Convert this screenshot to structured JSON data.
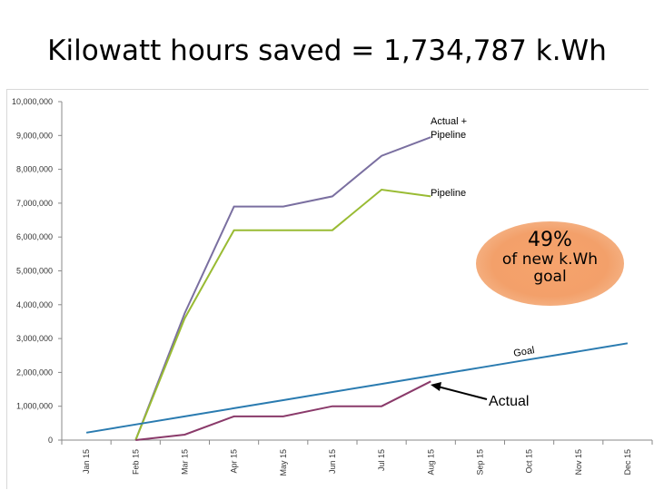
{
  "title": "Kilowatt hours saved = 1,734,787 k.Wh",
  "badge": {
    "percent": "49%",
    "text": "of new k.Wh goal"
  },
  "chart_data": {
    "type": "line",
    "categories": [
      "Jan 15",
      "Feb 15",
      "Mar 15",
      "Apr 15",
      "May 15",
      "Jun 15",
      "Jul 15",
      "Aug 15",
      "Sep 15",
      "Oct 15",
      "Nov 15",
      "Dec 15"
    ],
    "yticks": [
      "0",
      "1,000,000",
      "2,000,000",
      "3,000,000",
      "4,000,000",
      "5,000,000",
      "6,000,000",
      "7,000,000",
      "8,000,000",
      "9,000,000",
      "10,000,000"
    ],
    "ylim": [
      0,
      10000000
    ],
    "grid": false,
    "series": [
      {
        "name": "Actual + Pipeline",
        "color": "#7a6fa0",
        "values": [
          null,
          0,
          3750000,
          6900000,
          6900000,
          7200000,
          8400000,
          8950000,
          null,
          null,
          null,
          null
        ]
      },
      {
        "name": "Pipeline",
        "color": "#99bb33",
        "values": [
          null,
          0,
          3600000,
          6200000,
          6200000,
          6200000,
          7400000,
          7200000,
          null,
          null,
          null,
          null
        ]
      },
      {
        "name": "Goal",
        "color": "#2a7bb0",
        "values": [
          220000,
          460000,
          700000,
          940000,
          1180000,
          1420000,
          1660000,
          1900000,
          2140000,
          2380000,
          2620000,
          2860000
        ]
      },
      {
        "name": "Actual",
        "color": "#8a3a6a",
        "values": [
          null,
          0,
          160000,
          700000,
          700000,
          1000000,
          1000000,
          1734787,
          null,
          null,
          null,
          null
        ]
      }
    ],
    "annotations": {
      "actual_pipeline": "Actual + Pipeline",
      "pipeline": "Pipeline",
      "goal": "Goal",
      "actual": "Actual"
    }
  }
}
